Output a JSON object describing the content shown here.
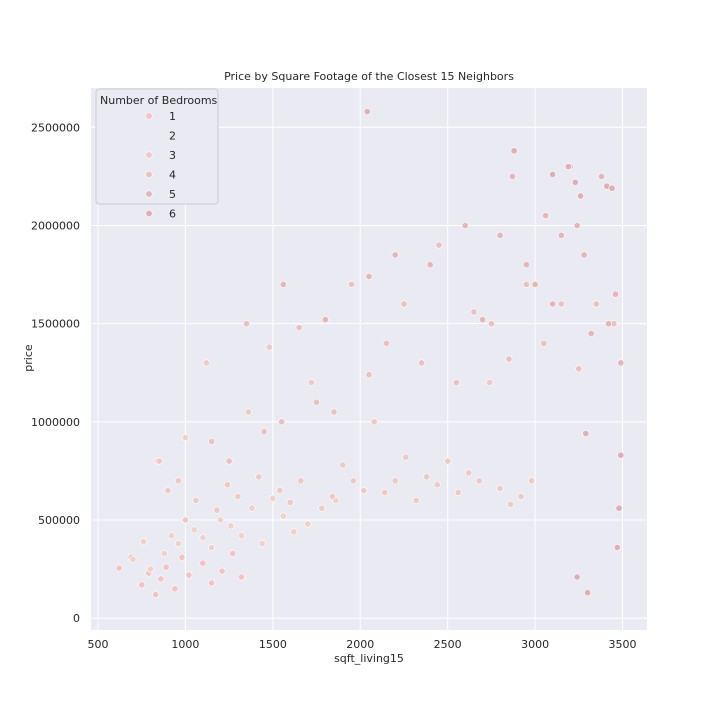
{
  "chart_data": {
    "type": "scatter",
    "title": "Price by Square Footage of the Closest 15 Neighbors",
    "xlabel": "sqft_living15",
    "ylabel": "price",
    "xlim": [
      460,
      3640
    ],
    "ylim": [
      -60000,
      2700000
    ],
    "xticks": [
      500,
      1000,
      1500,
      2000,
      2500,
      3000,
      3500
    ],
    "yticks": [
      0,
      500000,
      1000000,
      1500000,
      2000000,
      2500000
    ],
    "grid": true,
    "legend": {
      "title": "Number of Bedrooms",
      "placement": "top-left",
      "entries": [
        "1",
        "2",
        "3",
        "4",
        "5",
        "6"
      ]
    },
    "colors": {
      "background": "#eaeaf2",
      "grid": "#ffffff",
      "bed_1": "#f3c3c3",
      "bed_2": "#f1d0c8",
      "bed_3": "#ebcbc4",
      "bed_4": "#e9c2c0",
      "bed_5": "#e3b6b8",
      "bed_6": "#dfafb5",
      "marker_edge": "#ffffff"
    },
    "series": [
      {
        "name": "1",
        "x": [
          620,
          690,
          750,
          790,
          830,
          860,
          890,
          940,
          980,
          1020,
          1100,
          1150,
          1210,
          1270,
          1320
        ],
        "y": [
          255000,
          310000,
          170000,
          230000,
          120000,
          200000,
          260000,
          150000,
          310000,
          220000,
          280000,
          180000,
          240000,
          330000,
          210000
        ]
      },
      {
        "name": "2",
        "x": [
          700,
          760,
          800,
          840,
          880,
          920,
          960,
          1000,
          1050,
          1100,
          1150,
          1200,
          1260,
          1320,
          1380,
          1440,
          1500,
          1560,
          1620,
          1700,
          1780,
          1860
        ],
        "y": [
          300000,
          390000,
          250000,
          800000,
          330000,
          420000,
          380000,
          920000,
          450000,
          410000,
          360000,
          500000,
          470000,
          420000,
          560000,
          380000,
          610000,
          520000,
          440000,
          480000,
          560000,
          600000
        ]
      },
      {
        "name": "3",
        "x": [
          850,
          900,
          960,
          1000,
          1060,
          1120,
          1180,
          1240,
          1300,
          1360,
          1420,
          1480,
          1540,
          1600,
          1660,
          1720,
          1780,
          1840,
          1900,
          1960,
          2020,
          2080,
          2140,
          2200,
          2260,
          2320,
          2380,
          2440,
          2500,
          2560,
          2620,
          2680,
          2740,
          2800,
          2860,
          2920,
          2980
        ],
        "y": [
          800000,
          650000,
          700000,
          500000,
          600000,
          1300000,
          550000,
          680000,
          620000,
          1050000,
          720000,
          1380000,
          650000,
          590000,
          700000,
          1200000,
          560000,
          620000,
          780000,
          700000,
          650000,
          1000000,
          640000,
          700000,
          820000,
          600000,
          720000,
          680000,
          800000,
          640000,
          740000,
          700000,
          1200000,
          660000,
          580000,
          620000,
          700000
        ]
      },
      {
        "name": "4",
        "x": [
          1150,
          1250,
          1350,
          1450,
          1550,
          1650,
          1750,
          1850,
          1950,
          2050,
          2150,
          2250,
          2350,
          2450,
          2550,
          2650,
          2750,
          2850,
          2950,
          3050,
          3150,
          3250,
          3350,
          3450
        ],
        "y": [
          900000,
          800000,
          1500000,
          950000,
          1000000,
          1480000,
          1100000,
          1050000,
          1700000,
          1240000,
          1400000,
          1600000,
          1300000,
          1900000,
          1200000,
          1560000,
          1500000,
          1320000,
          1700000,
          1400000,
          1600000,
          1270000,
          1600000,
          1500000
        ]
      },
      {
        "name": "5",
        "x": [
          1560,
          1800,
          2050,
          2200,
          2400,
          2600,
          2700,
          2800,
          2870,
          2950,
          3000,
          3060,
          3100,
          3150,
          3200,
          3240,
          3280,
          3320,
          3380,
          3420,
          3460,
          3490
        ],
        "y": [
          1700000,
          1520000,
          1740000,
          1850000,
          1800000,
          2000000,
          1520000,
          1950000,
          2250000,
          1800000,
          1700000,
          2050000,
          1600000,
          1950000,
          2300000,
          2000000,
          1850000,
          1450000,
          2250000,
          1500000,
          1650000,
          1300000
        ]
      },
      {
        "name": "6",
        "x": [
          2040,
          2880,
          3100,
          3190,
          3230,
          3260,
          3410,
          3440,
          3300,
          3240,
          3470,
          3480,
          3490,
          3290
        ],
        "y": [
          2580000,
          2380000,
          2260000,
          2300000,
          2220000,
          2150000,
          2200000,
          2190000,
          130000,
          210000,
          360000,
          560000,
          830000,
          940000
        ]
      }
    ]
  }
}
